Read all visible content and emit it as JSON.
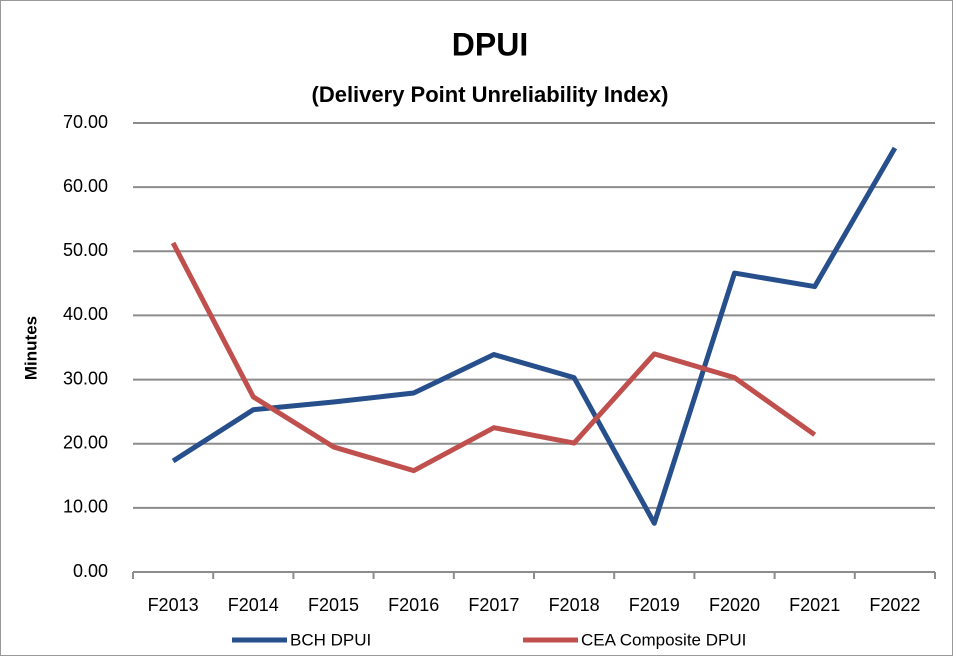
{
  "chart_data": {
    "type": "line",
    "title": "DPUI",
    "subtitle": "(Delivery Point Unreliability Index)",
    "y_label": "Minutes",
    "categories": [
      "F2013",
      "F2014",
      "F2015",
      "F2016",
      "F2017",
      "F2018",
      "F2019",
      "F2020",
      "F2021",
      "F2022"
    ],
    "series": [
      {
        "name": "BCH DPUI",
        "color": "#264f8c",
        "values": [
          17.3,
          25.3,
          26.5,
          27.9,
          33.9,
          30.3,
          7.6,
          46.6,
          44.5,
          66.1
        ]
      },
      {
        "name": "CEA Composite DPUI",
        "color": "#c0504d",
        "values": [
          51.3,
          27.3,
          19.5,
          15.8,
          22.5,
          20.1,
          34.0,
          30.3,
          21.4,
          null
        ]
      }
    ],
    "ylim": [
      0,
      70
    ],
    "yticks": [
      {
        "value": 0,
        "label": "0.00"
      },
      {
        "value": 10,
        "label": "10.00"
      },
      {
        "value": 20,
        "label": "20.00"
      },
      {
        "value": 30,
        "label": "30.00"
      },
      {
        "value": 40,
        "label": "40.00"
      },
      {
        "value": 50,
        "label": "50.00"
      },
      {
        "value": 60,
        "label": "60.00"
      },
      {
        "value": 70,
        "label": "70.00"
      }
    ],
    "grid": true,
    "legend": "bottom"
  }
}
